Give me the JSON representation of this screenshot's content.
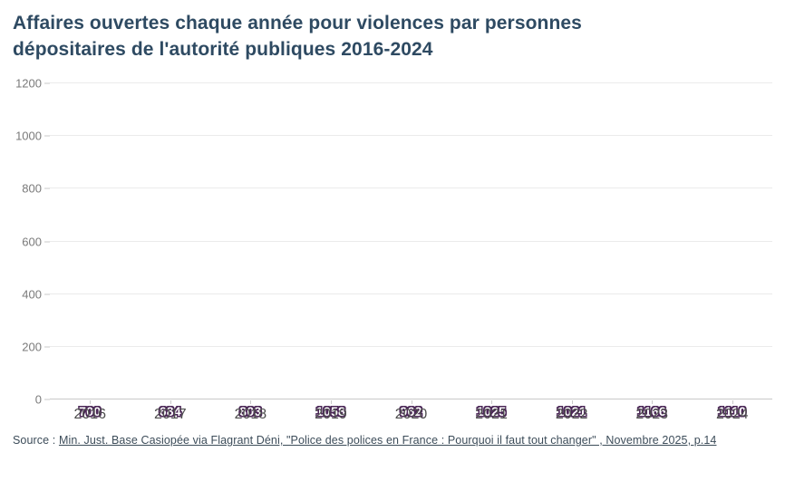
{
  "title": {
    "line1": "Affaires ouvertes chaque année pour violences par personnes",
    "line2": "dépositaires de l'autorité publiques 2016-2024"
  },
  "source": {
    "prefix": "Source : ",
    "link_text": "Min. Just. Base Casiopée via Flagrant Déni, \"Police des polices en France : Pourquoi il faut tout changer\" , Novembre 2025, p.14"
  },
  "colors": {
    "title": "#2e4a62",
    "bar": "#6d4378",
    "bar_label_outline": "#4b2757",
    "y_label": "#7a7a7a",
    "x_label": "#4d4d4d",
    "gridline": "#ebebeb",
    "axis_line": "#c9c9c9",
    "tick": "#c9c9c9",
    "source_text": "#3c4c59"
  },
  "chart_data": {
    "type": "bar",
    "title": "Affaires ouvertes chaque année pour violences par personnes dépositaires de l'autorité publiques 2016-2024",
    "categories": [
      "2016",
      "2017",
      "2018",
      "2019",
      "2020",
      "2021",
      "2022",
      "2023",
      "2024"
    ],
    "values": [
      700,
      684,
      803,
      1058,
      962,
      1025,
      1021,
      1166,
      1110
    ],
    "xlabel": "",
    "ylabel": "",
    "ylim": [
      0,
      1200
    ],
    "yticks": [
      0,
      200,
      400,
      600,
      800,
      1000,
      1200
    ],
    "grid": true,
    "legend": false,
    "bar_value_labels": true
  }
}
